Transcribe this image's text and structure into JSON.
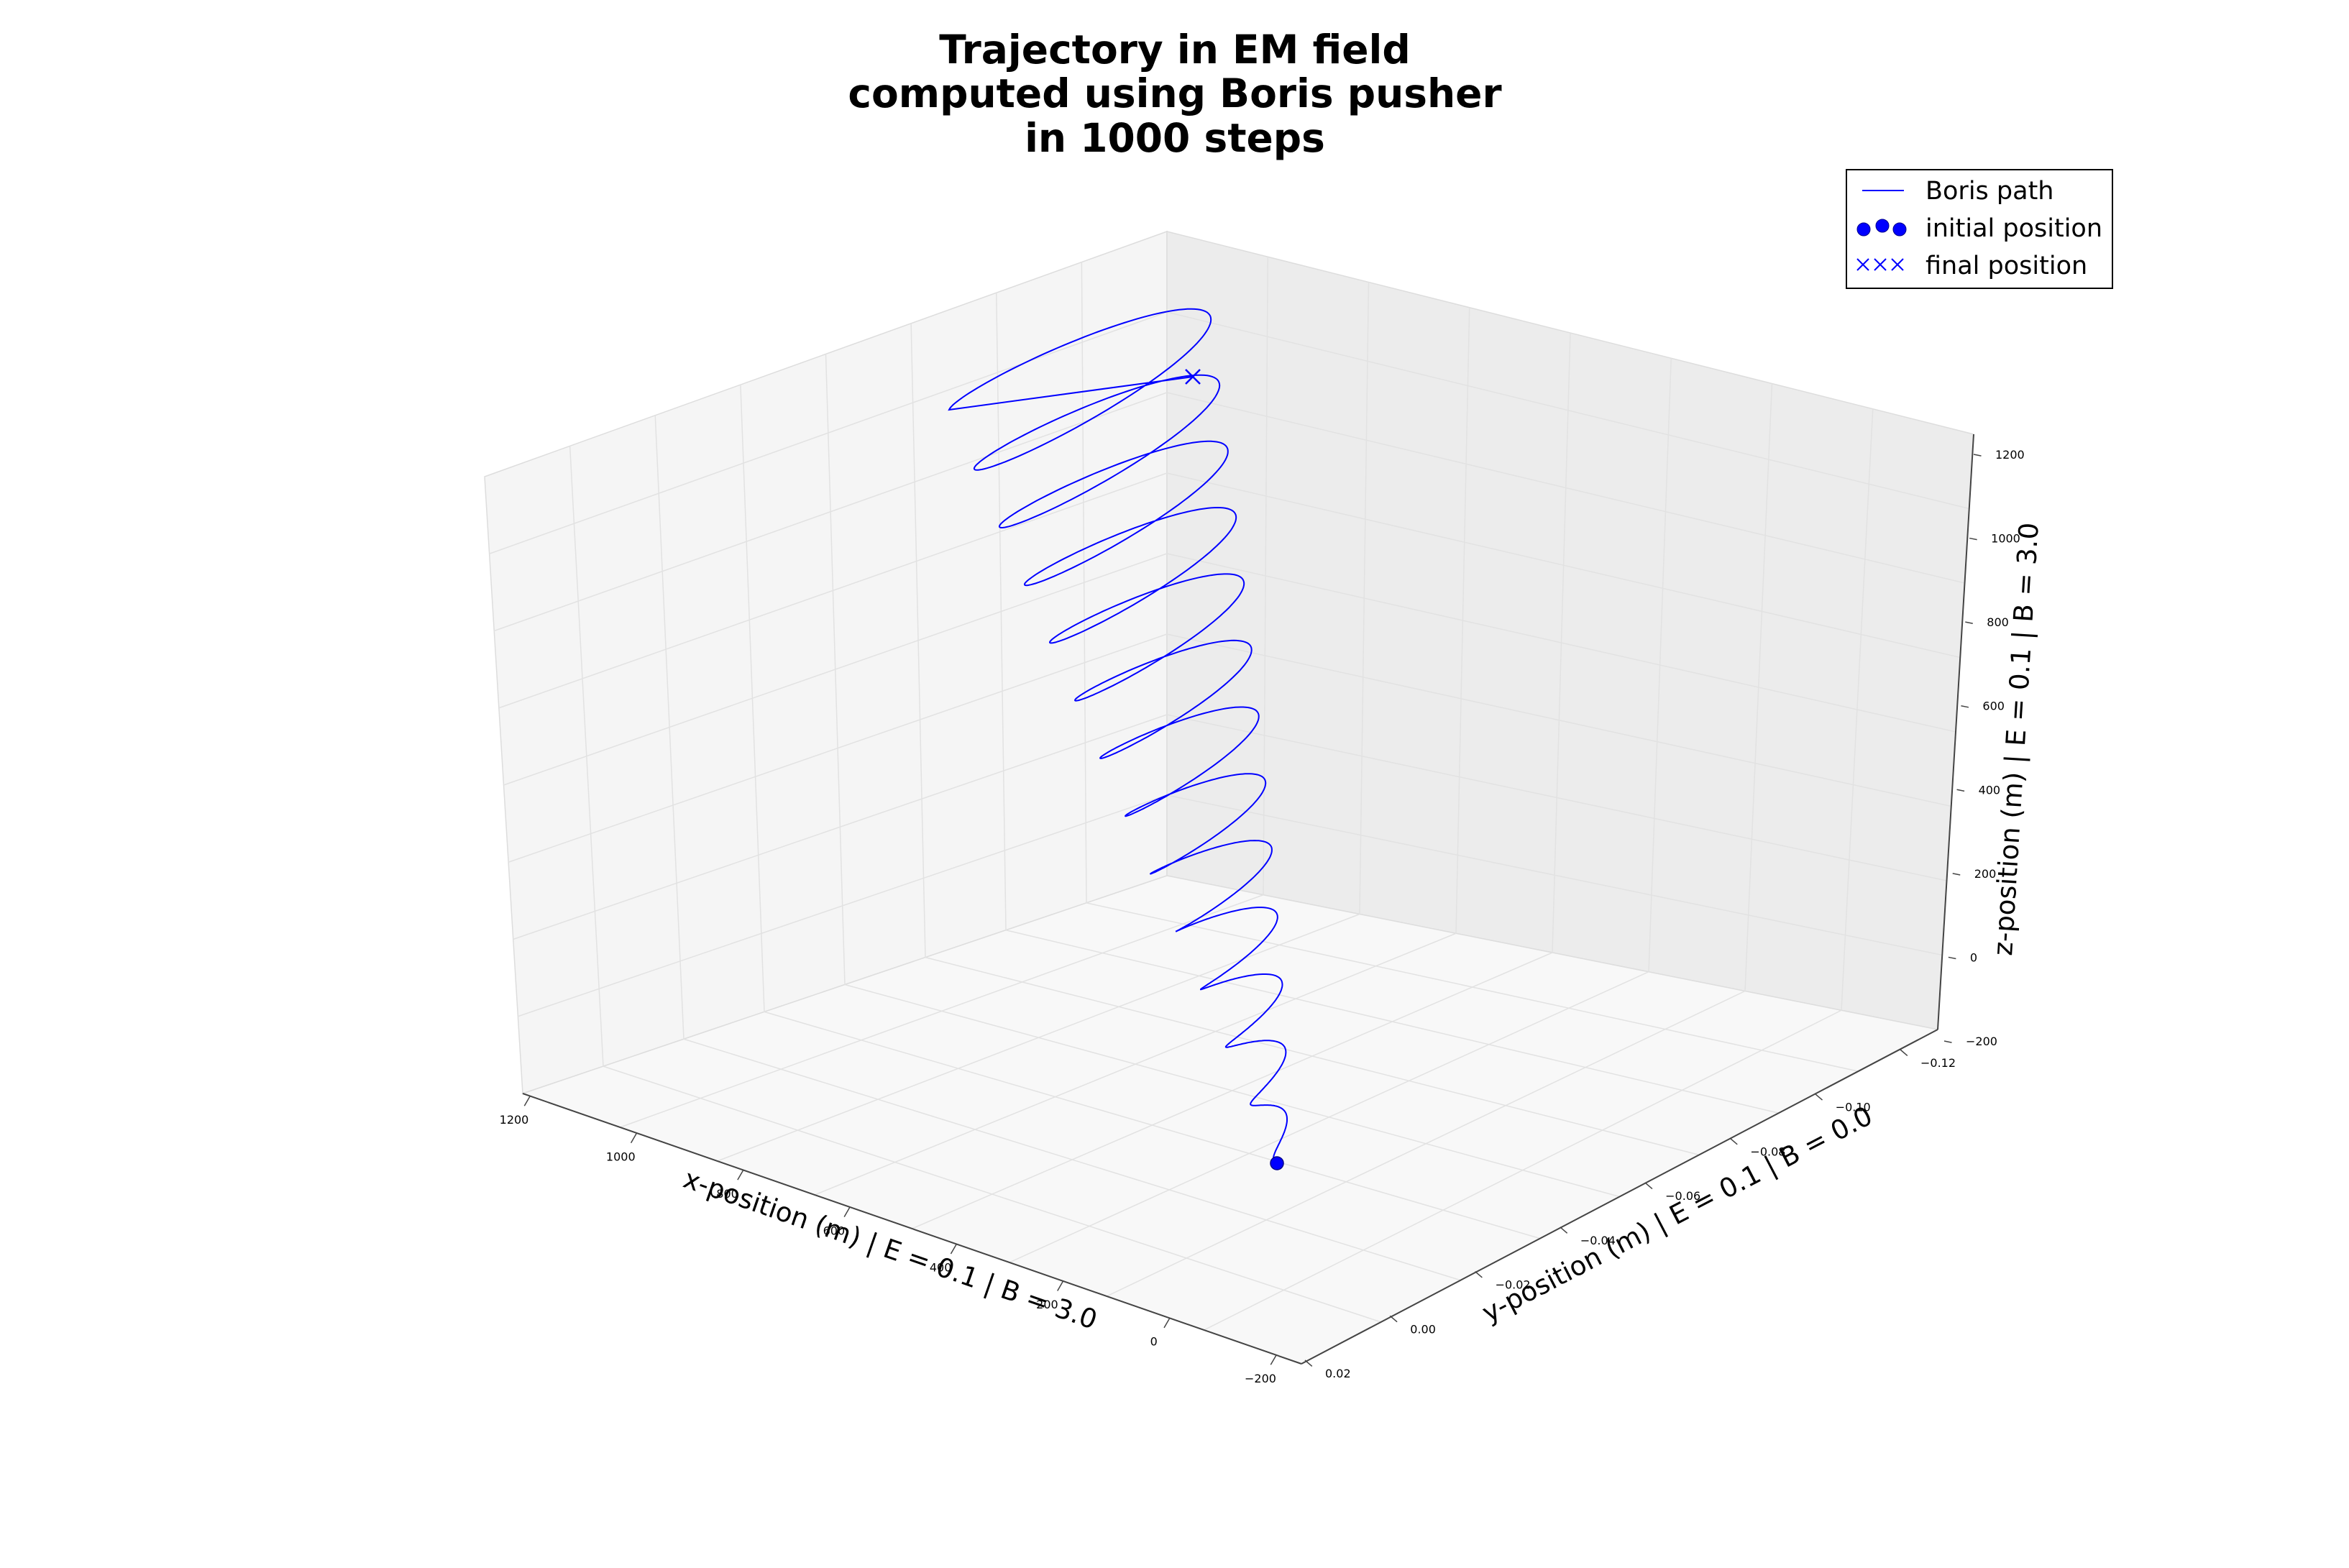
{
  "chart_data": {
    "type": "line",
    "projection": "3d",
    "title_lines": [
      "Trajectory in EM field",
      "computed using Boris pusher",
      "in 1000 steps"
    ],
    "xlabel": "x-position (m) | E = 0.1 | B = 3.0",
    "ylabel": "y-position (m) | E = 0.1 | B = 0.0",
    "zlabel": "z-position (m) | E = 0.1 | B = 3.0",
    "xlim": [
      -200,
      1200
    ],
    "ylim": [
      -0.12,
      0.02
    ],
    "zlim": [
      -200,
      1200
    ],
    "x_ticks": [
      "1200",
      "1000",
      "800",
      "600",
      "400",
      "200",
      "0",
      "−200"
    ],
    "y_ticks": [
      "0.02",
      "0.00",
      "−0.02",
      "−0.04",
      "−0.06",
      "−0.08",
      "−0.10",
      "−0.12"
    ],
    "z_ticks": [
      "1200",
      "1000",
      "800",
      "600",
      "400",
      "200",
      "0",
      "−200"
    ],
    "grid": true,
    "legend_position": "top-right",
    "legend": [
      {
        "label": "Boris path",
        "marker": "line"
      },
      {
        "label": "initial position",
        "marker": "circle"
      },
      {
        "label": "final position",
        "marker": "x"
      }
    ],
    "series": [
      {
        "name": "Boris path",
        "color": "#0000ff",
        "description": "helical trajectory, 13 loops, growing in amplitude with z",
        "start": {
          "x": 0,
          "y": 0.0,
          "z": 0
        },
        "end": {
          "x": 700,
          "y": -0.09,
          "z": 1180
        }
      }
    ],
    "markers": {
      "initial": {
        "x": 0,
        "y": 0.0,
        "z": 0,
        "color": "#0000ff"
      },
      "final": {
        "x": 700,
        "y": -0.09,
        "z": 1180,
        "color": "#0000ff"
      }
    }
  }
}
